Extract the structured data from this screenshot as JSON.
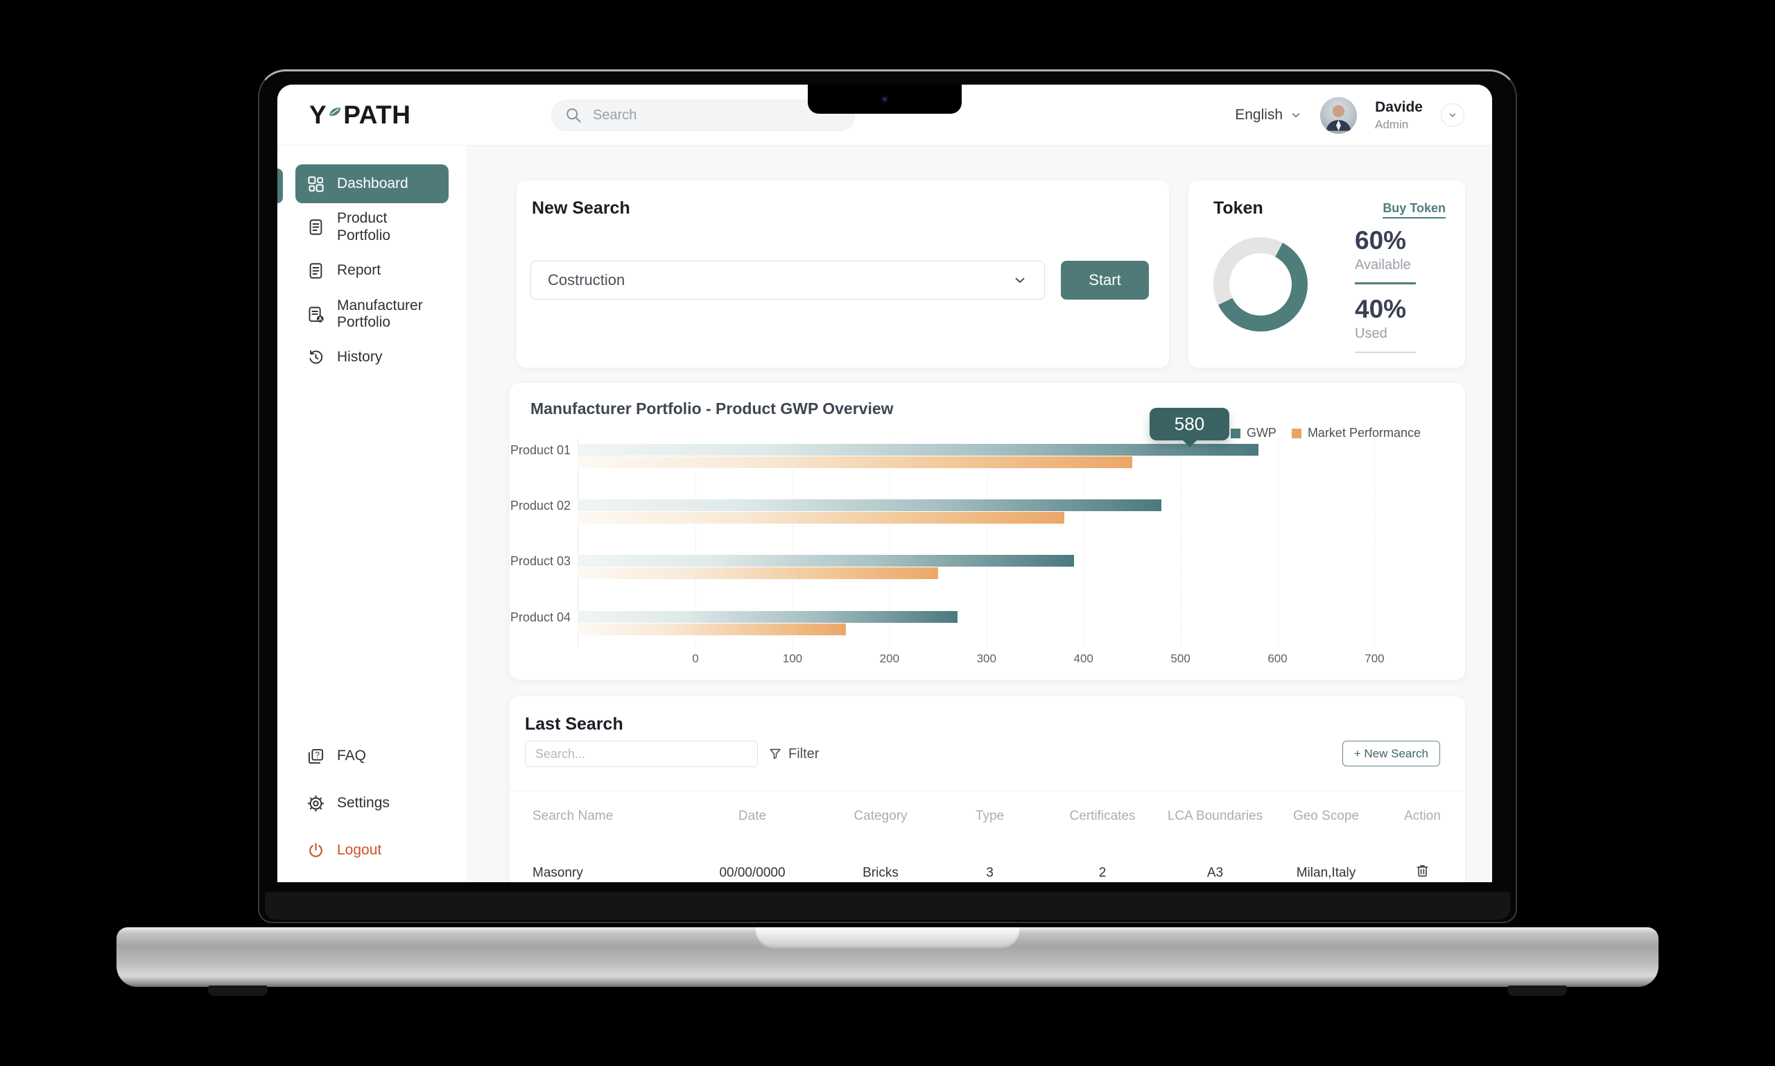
{
  "topbar": {
    "logo_text_1": "Y",
    "logo_text_2": "PATH",
    "search_placeholder": "Search",
    "language": "English",
    "user_name": "Davide",
    "user_role": "Admin"
  },
  "sidebar": {
    "items": [
      {
        "label": "Dashboard",
        "icon": "dashboard-grid",
        "active": true
      },
      {
        "label": "Product Portfolio",
        "icon": "document",
        "active": false
      },
      {
        "label": "Report",
        "icon": "document",
        "active": false
      },
      {
        "label": "Manufacturer Portfolio",
        "icon": "document-user",
        "active": false
      },
      {
        "label": "History",
        "icon": "history-clock",
        "active": false
      }
    ],
    "footer_items": [
      {
        "label": "FAQ",
        "icon": "faq"
      },
      {
        "label": "Settings",
        "icon": "gear"
      },
      {
        "label": "Logout",
        "icon": "power",
        "accent": "#CE5128"
      }
    ]
  },
  "new_search": {
    "title": "New Search",
    "category_value": "Costruction",
    "start_label": "Start"
  },
  "token": {
    "title": "Token",
    "buy_link": "Buy Token",
    "available_pct": "60%",
    "available_label": "Available",
    "used_pct": "40%",
    "used_label": "Used",
    "donut": {
      "available": 60,
      "used": 40
    }
  },
  "chart_data": {
    "type": "bar",
    "orientation": "horizontal",
    "title": "Manufacturer Portfolio - Product GWP Overview",
    "categories": [
      "Product 01",
      "Product 02",
      "Product 03",
      "Product 04"
    ],
    "series": [
      {
        "name": "GWP",
        "color": "#4E7D7C",
        "values": [
          580,
          480,
          390,
          270
        ]
      },
      {
        "name": "Market Performance",
        "color": "#E8A466",
        "values": [
          450,
          380,
          250,
          155
        ]
      }
    ],
    "x_ticks": [
      0,
      100,
      200,
      300,
      400,
      500,
      600,
      700
    ],
    "xlim": [
      0,
      700
    ],
    "grid": "vertical-dashed",
    "legend_position": "top-right",
    "tooltip": {
      "value": "580",
      "series": "GWP",
      "category": "Product 01"
    }
  },
  "last_search": {
    "title": "Last Search",
    "search_placeholder": "Search...",
    "filter_label": "Filter",
    "new_search_button": "+ New Search",
    "table": {
      "columns": [
        "Search Name",
        "Date",
        "Category",
        "Type",
        "Certificates",
        "LCA Boundaries",
        "Geo Scope",
        "Action"
      ],
      "rows": [
        {
          "search_name": "Masonry",
          "date": "00/00/0000",
          "category": "Bricks",
          "type": "3",
          "certificates": "2",
          "lca_boundaries": "A3",
          "geo_scope": "Milan,Italy",
          "action": "trash"
        }
      ]
    }
  },
  "colors": {
    "primary_teal": "#4F7A7A",
    "donut_teal": "#4E7D7C",
    "tooltip_teal": "#3B6263",
    "market_orange": "#E8A466",
    "logout_orange": "#CE5128"
  }
}
